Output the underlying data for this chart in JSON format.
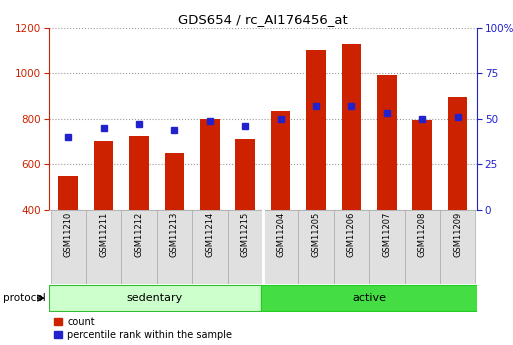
{
  "title": "GDS654 / rc_AI176456_at",
  "samples": [
    "GSM11210",
    "GSM11211",
    "GSM11212",
    "GSM11213",
    "GSM11214",
    "GSM11215",
    "GSM11204",
    "GSM11205",
    "GSM11206",
    "GSM11207",
    "GSM11208",
    "GSM11209"
  ],
  "counts": [
    550,
    700,
    725,
    650,
    800,
    710,
    835,
    1100,
    1130,
    990,
    795,
    895
  ],
  "percentile_ranks": [
    40,
    45,
    47,
    44,
    49,
    46,
    50,
    57,
    57,
    53,
    50,
    51
  ],
  "bar_bottom": 400,
  "ylim_left": [
    400,
    1200
  ],
  "ylim_right": [
    0,
    100
  ],
  "yticks_left": [
    400,
    600,
    800,
    1000,
    1200
  ],
  "yticks_right": [
    0,
    25,
    50,
    75,
    100
  ],
  "yticklabels_right": [
    "0",
    "25",
    "50",
    "75",
    "100%"
  ],
  "bar_color": "#cc2200",
  "dot_color": "#2222cc",
  "grid_color": "#999999",
  "group_labels": [
    "sedentary",
    "active"
  ],
  "group_colors": [
    "#ccffcc",
    "#44dd44"
  ],
  "protocol_label": "protocol",
  "legend_count_label": "count",
  "legend_pct_label": "percentile rank within the sample",
  "left_axis_color": "#cc2200",
  "right_axis_color": "#2222cc",
  "bar_width": 0.55,
  "separator_idx": 6
}
